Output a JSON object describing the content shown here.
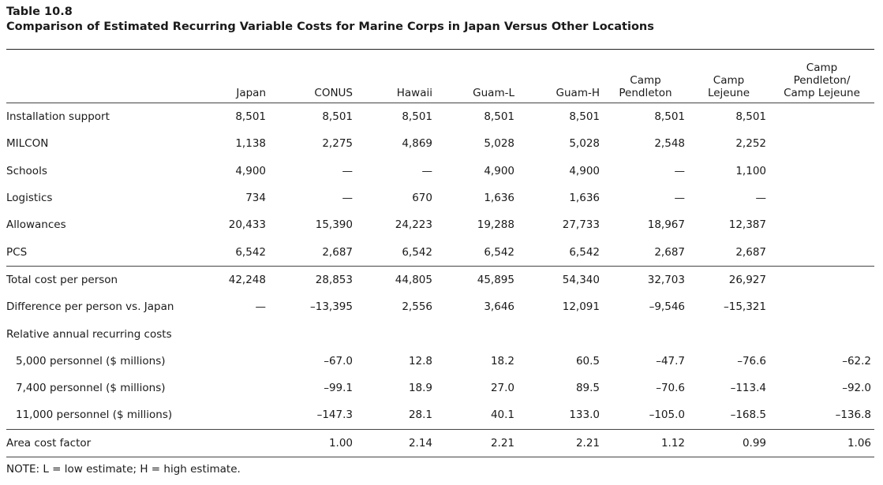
{
  "table": {
    "number": "Table 10.8",
    "title": "Comparison of Estimated Recurring Variable Costs for Marine Corps in Japan Versus Other Locations"
  },
  "columns": [
    [
      "Japan"
    ],
    [
      "CONUS"
    ],
    [
      "Hawaii"
    ],
    [
      "Guam-L"
    ],
    [
      "Guam-H"
    ],
    [
      "Camp",
      "Pendleton"
    ],
    [
      "Camp",
      "Lejeune"
    ],
    [
      "Camp",
      "Pendleton/",
      "Camp Lejeune"
    ]
  ],
  "rows": [
    {
      "label": "Installation support",
      "values": [
        "8,501",
        "8,501",
        "8,501",
        "8,501",
        "8,501",
        "8,501",
        "8,501",
        ""
      ]
    },
    {
      "label": "MILCON",
      "values": [
        "1,138",
        "2,275",
        "4,869",
        "5,028",
        "5,028",
        "2,548",
        "2,252",
        ""
      ]
    },
    {
      "label": "Schools",
      "values": [
        "4,900",
        "—",
        "—",
        "4,900",
        "4,900",
        "—",
        "1,100",
        ""
      ]
    },
    {
      "label": "Logistics",
      "values": [
        "734",
        "—",
        "670",
        "1,636",
        "1,636",
        "—",
        "—",
        ""
      ]
    },
    {
      "label": "Allowances",
      "values": [
        "20,433",
        "15,390",
        "24,223",
        "19,288",
        "27,733",
        "18,967",
        "12,387",
        ""
      ]
    },
    {
      "label": "PCS",
      "values": [
        "6,542",
        "2,687",
        "6,542",
        "6,542",
        "6,542",
        "2,687",
        "2,687",
        ""
      ]
    },
    {
      "label": "Total cost per person",
      "values": [
        "42,248",
        "28,853",
        "44,805",
        "45,895",
        "54,340",
        "32,703",
        "26,927",
        ""
      ],
      "rule_above": true
    },
    {
      "label": "Difference per person vs. Japan",
      "values": [
        "—",
        "–13,395",
        "2,556",
        "3,646",
        "12,091",
        "–9,546",
        "–15,321",
        ""
      ]
    },
    {
      "label": "Relative annual recurring costs",
      "values": [
        "",
        "",
        "",
        "",
        "",
        "",
        "",
        ""
      ]
    },
    {
      "label": "5,000 personnel ($ millions)",
      "indent": true,
      "values": [
        "",
        "–67.0",
        "12.8",
        "18.2",
        "60.5",
        "–47.7",
        "–76.6",
        "–62.2"
      ]
    },
    {
      "label": "7,400 personnel ($ millions)",
      "indent": true,
      "values": [
        "",
        "–99.1",
        "18.9",
        "27.0",
        "89.5",
        "–70.6",
        "–113.4",
        "–92.0"
      ]
    },
    {
      "label": "11,000 personnel ($ millions)",
      "indent": true,
      "values": [
        "",
        "–147.3",
        "28.1",
        "40.1",
        "133.0",
        "–105.0",
        "–168.5",
        "–136.8"
      ]
    },
    {
      "label": "Area cost factor",
      "values": [
        "",
        "1.00",
        "2.14",
        "2.21",
        "2.21",
        "1.12",
        "0.99",
        "1.06"
      ],
      "rule_above": true,
      "last": true
    }
  ],
  "note": "NOTE: L = low estimate; H = high estimate."
}
